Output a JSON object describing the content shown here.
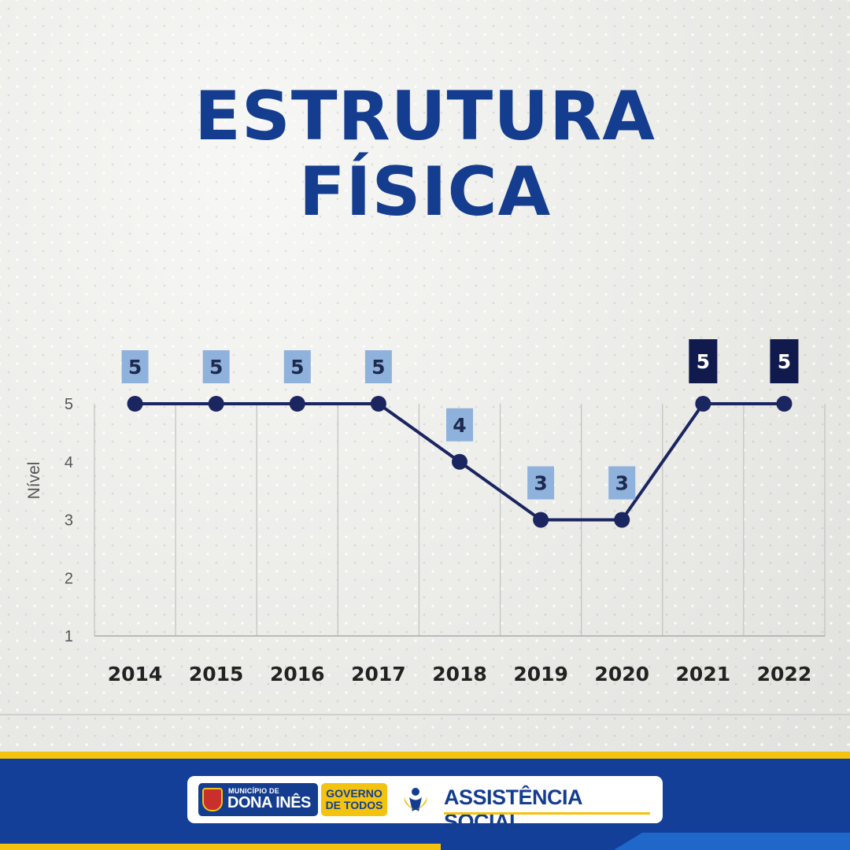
{
  "title": {
    "line1": "ESTRUTURA",
    "line2": "FÍSICA"
  },
  "chart_data": {
    "type": "line",
    "x": [
      "2014",
      "2015",
      "2016",
      "2017",
      "2018",
      "2019",
      "2020",
      "2021",
      "2022"
    ],
    "series": [
      {
        "values": [
          5,
          5,
          5,
          5,
          4,
          3,
          3,
          5,
          5
        ]
      }
    ],
    "data_labels": [
      "5",
      "5",
      "5",
      "5",
      "4",
      "3",
      "3",
      "5",
      "5"
    ],
    "ylabel": "Nível",
    "yticks": [
      "1",
      "2",
      "3",
      "4",
      "5"
    ],
    "ylim": [
      1,
      5
    ],
    "grid": "vertical",
    "colors": {
      "line": "#1b2560",
      "label_light": "#8fb2dc",
      "label_dark": "#101a4d",
      "label_text_on_light": "#1d2a50",
      "label_text_on_dark": "#ffffff"
    },
    "dark_label_years": [
      "2021",
      "2022"
    ]
  },
  "footer": {
    "municipality_small": "MUNICÍPIO DE",
    "municipality_name": "DONA INÊS",
    "gov_line1": "GOVERNO",
    "gov_line2": "DE TODOS",
    "department": "ASSISTÊNCIA SOCIAL",
    "crest_icon": "municipal-crest-icon",
    "department_icon": "assistencia-social-icon"
  }
}
